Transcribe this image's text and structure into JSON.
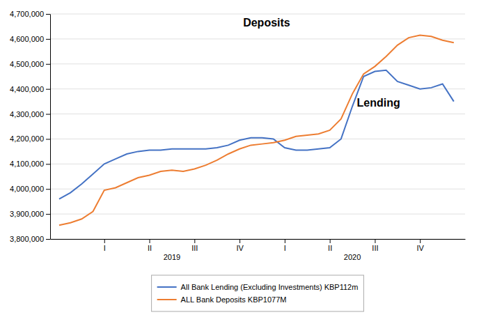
{
  "chart_data": {
    "type": "line",
    "x": [
      0.0,
      0.25,
      0.5,
      0.75,
      1.0,
      1.25,
      1.5,
      1.75,
      2.0,
      2.25,
      2.5,
      2.75,
      3.0,
      3.25,
      3.5,
      3.75,
      4.0,
      4.25,
      4.5,
      4.75,
      5.0,
      5.25,
      5.5,
      5.75,
      6.0,
      6.25,
      6.5,
      6.75,
      7.0,
      7.25,
      7.5,
      7.75,
      8.0,
      8.25,
      8.5,
      8.75
    ],
    "series": [
      {
        "name": "All Bank Lending (Excluding Investments) KBP112m",
        "color": "#4472C4",
        "values": [
          3960000,
          3985000,
          4020000,
          4060000,
          4100000,
          4120000,
          4140000,
          4150000,
          4155000,
          4155000,
          4160000,
          4160000,
          4160000,
          4160000,
          4165000,
          4175000,
          4195000,
          4205000,
          4205000,
          4200000,
          4165000,
          4155000,
          4155000,
          4160000,
          4165000,
          4200000,
          4330000,
          4450000,
          4470000,
          4475000,
          4430000,
          4415000,
          4400000,
          4405000,
          4420000,
          4350000
        ]
      },
      {
        "name": "ALL Bank Deposits KBP1077M",
        "color": "#ED7D31",
        "values": [
          3855000,
          3865000,
          3880000,
          3910000,
          3995000,
          4005000,
          4025000,
          4045000,
          4055000,
          4070000,
          4075000,
          4070000,
          4080000,
          4095000,
          4115000,
          4140000,
          4160000,
          4175000,
          4180000,
          4185000,
          4195000,
          4210000,
          4215000,
          4220000,
          4235000,
          4280000,
          4380000,
          4460000,
          4490000,
          4530000,
          4575000,
          4605000,
          4615000,
          4610000,
          4595000,
          4585000
        ]
      }
    ],
    "xlim": [
      -0.2,
      9.0
    ],
    "xticks": [
      {
        "value": 1,
        "label": "I"
      },
      {
        "value": 2,
        "label": "II"
      },
      {
        "value": 3,
        "label": "III"
      },
      {
        "value": 4,
        "label": "IV"
      },
      {
        "value": 5,
        "label": "I"
      },
      {
        "value": 6,
        "label": "II"
      },
      {
        "value": 7,
        "label": "III"
      },
      {
        "value": 8,
        "label": "IV"
      }
    ],
    "ylim": [
      3800000,
      4700000
    ],
    "yticks": [
      {
        "value": 3800000,
        "label": "3,800,000"
      },
      {
        "value": 3900000,
        "label": "3,900,000"
      },
      {
        "value": 4000000,
        "label": "4,000,000"
      },
      {
        "value": 4100000,
        "label": "4,100,000"
      },
      {
        "value": 4200000,
        "label": "4,200,000"
      },
      {
        "value": 4300000,
        "label": "4,300,000"
      },
      {
        "value": 4400000,
        "label": "4,400,000"
      },
      {
        "value": 4500000,
        "label": "4,500,000"
      },
      {
        "value": 4600000,
        "label": "4,600,000"
      },
      {
        "value": 4700000,
        "label": "4,700,000"
      }
    ],
    "grid": true,
    "legend": "bottom",
    "annotations": [
      {
        "text": "2019",
        "x": 2.5,
        "y": 3800000
      },
      {
        "text": "2020",
        "x": 6.5,
        "y": 3800000
      },
      {
        "text": "Deposits",
        "x": 4.6,
        "y": 4650000
      },
      {
        "text": "Lending",
        "x": 6.6,
        "y": 4330000
      }
    ]
  }
}
